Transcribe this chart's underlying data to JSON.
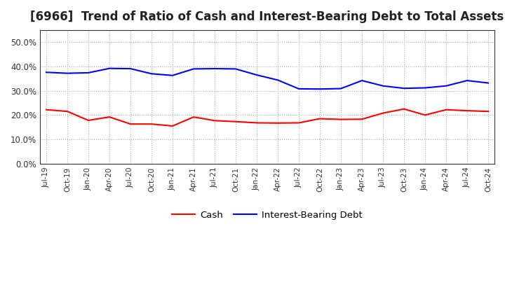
{
  "title": "[6966]  Trend of Ratio of Cash and Interest-Bearing Debt to Total Assets",
  "x_labels": [
    "Jul-19",
    "Oct-19",
    "Jan-20",
    "Apr-20",
    "Jul-20",
    "Oct-20",
    "Jan-21",
    "Apr-21",
    "Jul-21",
    "Oct-21",
    "Jan-22",
    "Apr-22",
    "Jul-22",
    "Oct-22",
    "Jan-23",
    "Apr-23",
    "Jul-23",
    "Oct-23",
    "Jan-24",
    "Apr-24",
    "Jul-24",
    "Oct-24"
  ],
  "cash": [
    0.222,
    0.215,
    0.178,
    0.192,
    0.163,
    0.163,
    0.155,
    0.192,
    0.177,
    0.173,
    0.168,
    0.167,
    0.168,
    0.185,
    0.182,
    0.183,
    0.208,
    0.225,
    0.2,
    0.222,
    0.218,
    0.215
  ],
  "interest_bearing_debt": [
    0.376,
    0.372,
    0.374,
    0.392,
    0.391,
    0.37,
    0.363,
    0.39,
    0.391,
    0.39,
    0.365,
    0.344,
    0.308,
    0.307,
    0.309,
    0.342,
    0.32,
    0.31,
    0.312,
    0.32,
    0.342,
    0.332
  ],
  "cash_color": "#FF0000",
  "debt_color": "#0000FF",
  "ylim": [
    0.0,
    0.55
  ],
  "yticks": [
    0.0,
    0.1,
    0.2,
    0.3,
    0.4,
    0.5
  ],
  "background_color": "#FFFFFF",
  "grid_color": "#aaaaaa",
  "title_fontsize": 12,
  "line_width": 1.5,
  "legend_labels": [
    "Cash",
    "Interest-Bearing Debt"
  ]
}
